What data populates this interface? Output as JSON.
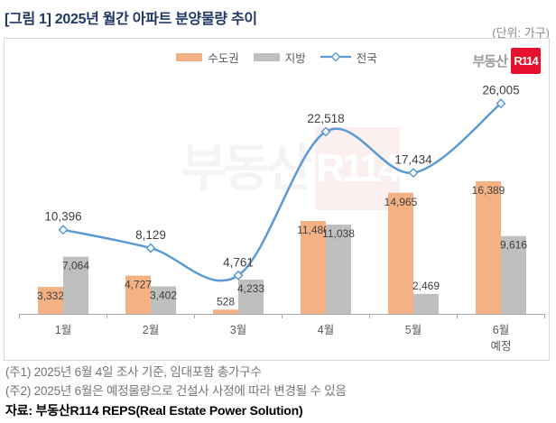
{
  "header": {
    "title": "[그림 1] 2025년 월간 아파트 분양물량 추이",
    "unit": "(단위: 가구)"
  },
  "logo": {
    "prefix": "부동산",
    "badge": "R114",
    "badge_color": "#E8112D"
  },
  "watermark": {
    "prefix": "부동산",
    "badge": "R114"
  },
  "chart_data": {
    "type": "bar+line",
    "title": "2025년 월간 아파트 분양물량 추이",
    "categories": [
      {
        "label": "1월",
        "sublabel": ""
      },
      {
        "label": "2월",
        "sublabel": ""
      },
      {
        "label": "3월",
        "sublabel": ""
      },
      {
        "label": "4월",
        "sublabel": ""
      },
      {
        "label": "5월",
        "sublabel": ""
      },
      {
        "label": "6월",
        "sublabel": "예정"
      }
    ],
    "series": [
      {
        "name": "수도권",
        "type": "bar",
        "color": "#F4B183",
        "values": [
          3332,
          4727,
          528,
          11480,
          14965,
          16389
        ]
      },
      {
        "name": "지방",
        "type": "bar",
        "color": "#BFBFBF",
        "values": [
          7064,
          3402,
          4233,
          11038,
          2469,
          9616
        ]
      },
      {
        "name": "전국",
        "type": "line",
        "color": "#5B9BD5",
        "values": [
          10396,
          8129,
          4761,
          22518,
          17434,
          26005
        ]
      }
    ],
    "ylim": [
      0,
      34000
    ],
    "grid": false,
    "legend_position": "top-center",
    "value_format": "thousands-comma",
    "label_color": "#404040",
    "axis_color": "#A6A6A6",
    "category_label_color": "#595959"
  },
  "footnotes": [
    "(주1) 2025년 6월 4일 조사 기준, 임대포함 총가구수",
    "(주2) 2025년 6월은 예정물량으로 건설사 사정에 따라 변경될 수 있음"
  ],
  "source": "자료: 부동산R114 REPS(Real Estate Power Solution)"
}
